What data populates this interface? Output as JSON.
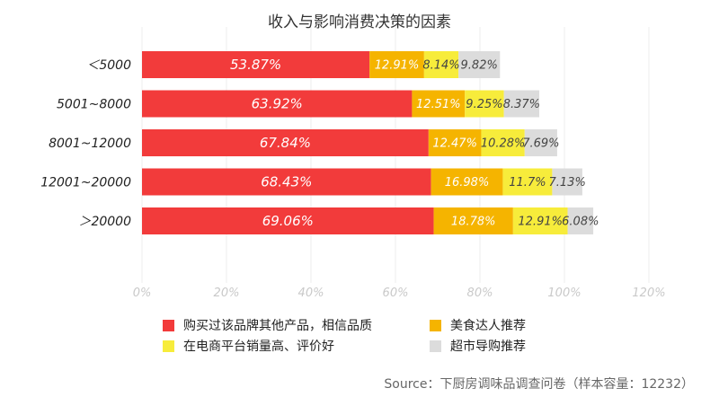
{
  "chart_data": {
    "type": "bar",
    "orientation": "horizontal",
    "stacked": true,
    "title": "收入与影响消费决策的因素",
    "categories": [
      "＜5000",
      "5001~8000",
      "8001~12000",
      "12001~20000",
      "＞20000"
    ],
    "series": [
      {
        "name": "购买过该品牌其他产品，相信品质",
        "color": "#f23b3b",
        "values": [
          53.87,
          63.92,
          67.84,
          68.43,
          69.06
        ],
        "labels": [
          "53.87%",
          "63.92%",
          "67.84%",
          "68.43%",
          "69.06%"
        ]
      },
      {
        "name": "美食达人推荐",
        "color": "#f5b400",
        "values": [
          12.91,
          12.51,
          12.47,
          16.98,
          18.78
        ],
        "labels": [
          "12.91%",
          "12.51%",
          "12.47%",
          "16.98%",
          "18.78%"
        ]
      },
      {
        "name": "在电商平台销量高、评价好",
        "color": "#f7ec3b",
        "values": [
          8.14,
          9.25,
          10.28,
          11.7,
          12.91
        ],
        "labels": [
          "8.14%",
          "9.25%",
          "10.28%",
          "11.7%",
          "12.91%"
        ]
      },
      {
        "name": "超市导购推荐",
        "color": "#dcdcdc",
        "values": [
          9.82,
          8.37,
          7.69,
          7.13,
          6.08
        ],
        "labels": [
          "9.82%",
          "8.37%",
          "7.69%",
          "7.13%",
          "6.08%"
        ]
      }
    ],
    "xlim": [
      0,
      120
    ],
    "xticks": [
      "0%",
      "20%",
      "40%",
      "60%",
      "80%",
      "100%",
      "120%"
    ],
    "xlabel": "",
    "ylabel": "",
    "grid": true,
    "legend_position": "bottom"
  },
  "source": "Source：下厨房调味品调查问卷（样本容量：12232）"
}
